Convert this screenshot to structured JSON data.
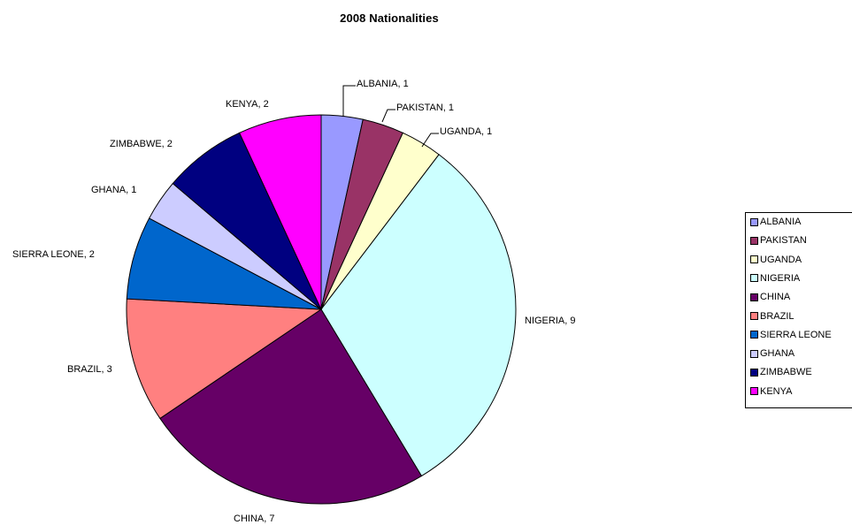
{
  "chart_data": {
    "type": "pie",
    "title": "2008 Nationalities",
    "slices": [
      {
        "label": "ALBANIA",
        "value": 1,
        "color": "#9999ff",
        "data_label": "ALBANIA, 1",
        "legend_label": "ALBANIA"
      },
      {
        "label": "PAKISTAN",
        "value": 1,
        "color": "#993366",
        "data_label": "PAKISTAN, 1",
        "legend_label": "PAKISTAN"
      },
      {
        "label": "UGANDA",
        "value": 1,
        "color": "#ffffcc",
        "data_label": "UGANDA, 1",
        "legend_label": "UGANDA"
      },
      {
        "label": "NIGERIA",
        "value": 9,
        "color": "#ccffff",
        "data_label": "NIGERIA, 9",
        "legend_label": "NIGERIA"
      },
      {
        "label": "CHINA",
        "value": 7,
        "color": "#660066",
        "data_label": "CHINA, 7",
        "legend_label": "CHINA"
      },
      {
        "label": "BRAZIL",
        "value": 3,
        "color": "#ff8080",
        "data_label": "BRAZIL, 3",
        "legend_label": "BRAZIL"
      },
      {
        "label": "SIERRA LEONE",
        "value": 2,
        "color": "#0066cc",
        "data_label": "SIERRA LEONE, 2",
        "legend_label": "SIERRA LEONE"
      },
      {
        "label": "GHANA",
        "value": 1,
        "color": "#ccccff",
        "data_label": "GHANA, 1",
        "legend_label": "GHANA"
      },
      {
        "label": "ZIMBABWE",
        "value": 2,
        "color": "#000080",
        "data_label": "ZIMBABWE, 2",
        "legend_label": "ZIMBABWE"
      },
      {
        "label": "KENYA",
        "value": 2,
        "color": "#ff00ff",
        "data_label": "KENYA, 2",
        "legend_label": "KENYA"
      }
    ],
    "legend_position": "right",
    "start_angle": "top, clockwise"
  }
}
